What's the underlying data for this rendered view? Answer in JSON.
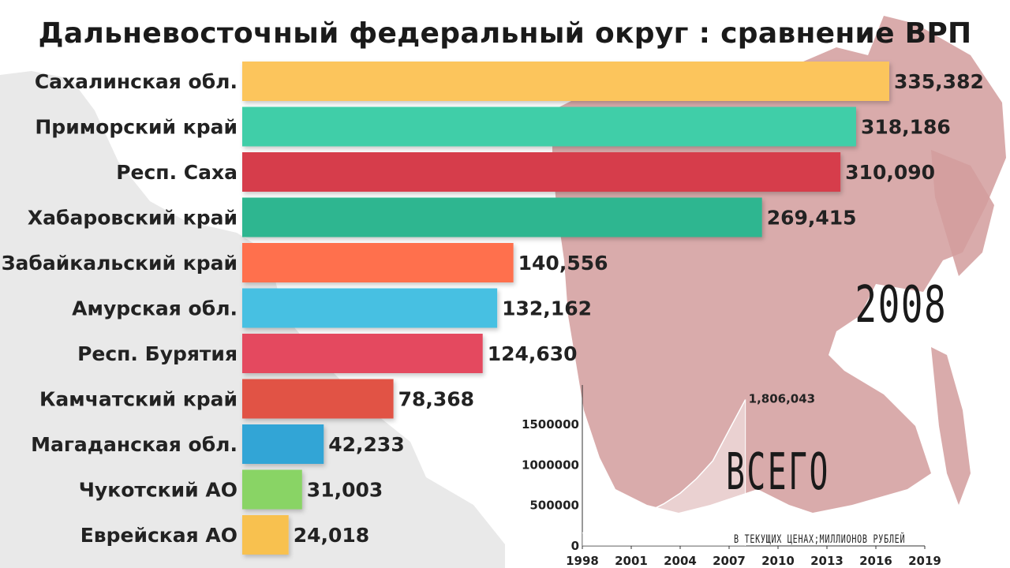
{
  "chart_data": {
    "type": "bar",
    "orientation": "horizontal",
    "title": "Дальневосточный федеральный округ : сравнение ВРП",
    "year": "2008",
    "categories": [
      "Сахалинская обл.",
      "Приморский край",
      "Респ. Саха",
      "Хабаровский край",
      "Забайкальский край",
      "Амурская обл.",
      "Респ. Бурятия",
      "Камчатский край",
      "Магаданская обл.",
      "Чукотский АО",
      "Еврейская АО"
    ],
    "values": [
      335382,
      318186,
      310090,
      269415,
      140556,
      132162,
      124630,
      78368,
      42233,
      31003,
      24018
    ],
    "value_labels": [
      "335,382",
      "318,186",
      "310,090",
      "269,415",
      "140,556",
      "132,162",
      "124,630",
      "78,368",
      "42,233",
      "31,003",
      "24,018"
    ],
    "colors": [
      "#fcc55b",
      "#41cea8",
      "#d63c4c",
      "#2fb690",
      "#ff6f4d",
      "#47c0e2",
      "#e44a5e",
      "#e15245",
      "#31a5d6",
      "#89d465",
      "#f8c14f"
    ],
    "inset": {
      "type": "area",
      "label": "ВСЕГО",
      "units_note": "В ТЕКУЩИХ ЦЕНАХ;МИЛЛИОНОВ РУБЛЕЙ",
      "xticks": [
        "1998",
        "2001",
        "2004",
        "2007",
        "2010",
        "2013",
        "2016",
        "2019"
      ],
      "yticks": [
        "0",
        "500000",
        "1000000",
        "1500000"
      ],
      "xlim": [
        1998,
        2019
      ],
      "ylim": [
        0,
        1850000
      ],
      "x": [
        1998,
        1999,
        2000,
        2001,
        2002,
        2003,
        2004,
        2005,
        2006,
        2007,
        2008
      ],
      "y": [
        160000,
        210000,
        280000,
        350000,
        420000,
        520000,
        650000,
        830000,
        1050000,
        1430000,
        1806043
      ],
      "end_label": "1,806,043"
    }
  }
}
